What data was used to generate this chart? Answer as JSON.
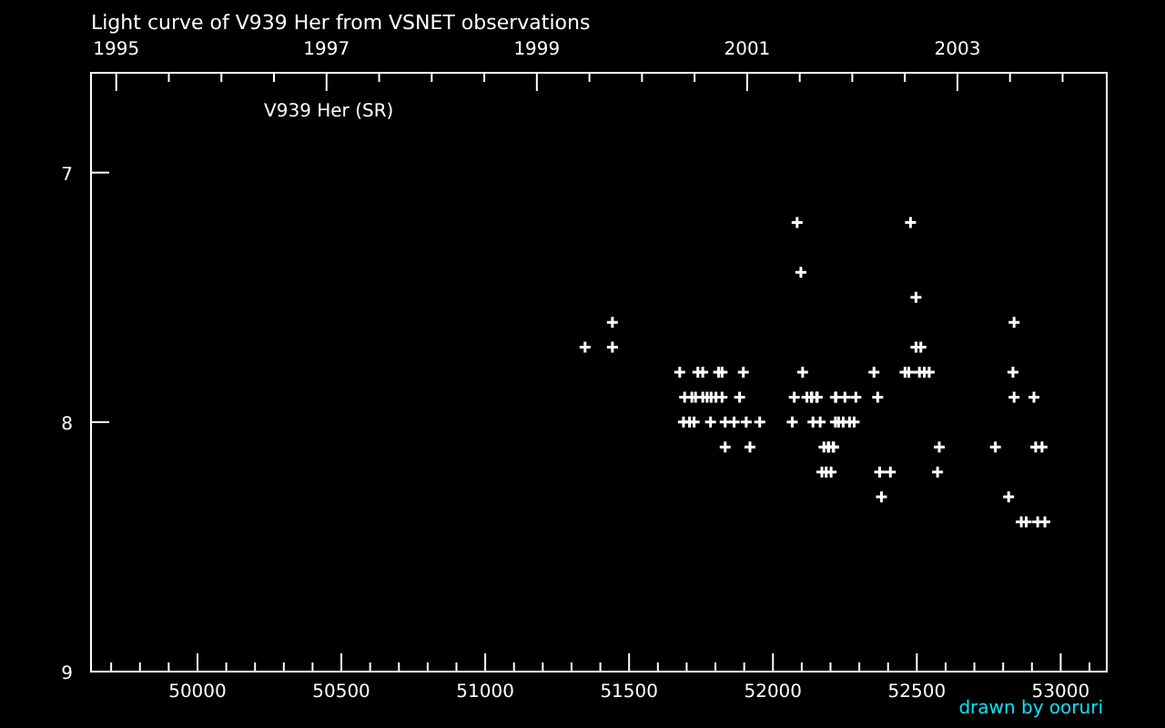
{
  "chart_data": {
    "type": "scatter",
    "title": "Light curve of V939 Her from VSNET observations",
    "annotations": [
      "V939 Her (SR)",
      "drawn by ooruri"
    ],
    "xlim": [
      49630,
      53160
    ],
    "xticks": [
      {
        "value": 49700,
        "label": null
      },
      {
        "value": 49800,
        "label": null
      },
      {
        "value": 49900,
        "label": null
      },
      50000,
      {
        "value": 50100,
        "label": null
      },
      {
        "value": 50200,
        "label": null
      },
      {
        "value": 50300,
        "label": null
      },
      {
        "value": 50400,
        "label": null
      },
      50500,
      {
        "value": 50600,
        "label": null
      },
      {
        "value": 50700,
        "label": null
      },
      {
        "value": 50800,
        "label": null
      },
      {
        "value": 50900,
        "label": null
      },
      51000,
      {
        "value": 51100,
        "label": null
      },
      {
        "value": 51200,
        "label": null
      },
      {
        "value": 51300,
        "label": null
      },
      {
        "value": 51400,
        "label": null
      },
      51500,
      {
        "value": 51600,
        "label": null
      },
      {
        "value": 51700,
        "label": null
      },
      {
        "value": 51800,
        "label": null
      },
      {
        "value": 51900,
        "label": null
      },
      52000,
      {
        "value": 52100,
        "label": null
      },
      {
        "value": 52200,
        "label": null
      },
      {
        "value": 52300,
        "label": null
      },
      {
        "value": 52400,
        "label": null
      },
      52500,
      {
        "value": 52600,
        "label": null
      },
      {
        "value": 52700,
        "label": null
      },
      {
        "value": 52800,
        "label": null
      },
      {
        "value": 52900,
        "label": null
      },
      53000,
      {
        "value": 53100,
        "label": null
      }
    ],
    "x2lim": [
      1994.76,
      2004.42
    ],
    "x2ticks": [
      1995,
      {
        "value": 1995.5,
        "label": null
      },
      {
        "value": 1996,
        "label": null
      },
      {
        "value": 1996.5,
        "label": null
      },
      1997,
      {
        "value": 1997.5,
        "label": null
      },
      {
        "value": 1998,
        "label": null
      },
      {
        "value": 1998.5,
        "label": null
      },
      1999,
      {
        "value": 1999.5,
        "label": null
      },
      {
        "value": 2000,
        "label": null
      },
      {
        "value": 2000.5,
        "label": null
      },
      2001,
      {
        "value": 2001.5,
        "label": null
      },
      {
        "value": 2002,
        "label": null
      },
      {
        "value": 2002.5,
        "label": null
      },
      2003,
      {
        "value": 2003.5,
        "label": null
      },
      {
        "value": 2004,
        "label": null
      }
    ],
    "ylim": [
      9,
      6.6
    ],
    "yticks": [
      7,
      8,
      9
    ],
    "marker": "cross",
    "series": [
      {
        "color": "#ffffff",
        "x": [
          51442,
          51347,
          51442,
          51676,
          51739,
          51756,
          51811,
          51823,
          51897,
          52103,
          51693,
          51718,
          51731,
          51756,
          51771,
          51785,
          51802,
          51823,
          51884,
          52074,
          52118,
          52133,
          52154,
          52217,
          51689,
          51710,
          51726,
          51783,
          51834,
          51865,
          51907,
          51954,
          52067,
          52139,
          52164,
          52217,
          51834,
          51920,
          52177,
          52194,
          52211,
          52170,
          52185,
          52202,
          52478,
          52084,
          52097,
          52497,
          52838,
          52497,
          52514,
          52351,
          52459,
          52472,
          52509,
          52526,
          52543,
          52834,
          52135,
          52152,
          52219,
          52250,
          52288,
          52364,
          52838,
          52907,
          52228,
          52244,
          52266,
          52282,
          52192,
          52209,
          52578,
          52773,
          52913,
          52935,
          52371,
          52408,
          52572,
          52377,
          52819,
          52863,
          52880,
          52920,
          52945
        ],
        "values": [
          7.6,
          7.7,
          7.7,
          7.8,
          7.8,
          7.8,
          7.8,
          7.8,
          7.8,
          7.8,
          7.9,
          7.9,
          7.9,
          7.9,
          7.9,
          7.9,
          7.9,
          7.9,
          7.9,
          7.9,
          7.9,
          7.9,
          7.9,
          7.9,
          8.0,
          8.0,
          8.0,
          8.0,
          8.0,
          8.0,
          8.0,
          8.0,
          8.0,
          8.0,
          8.0,
          8.0,
          8.1,
          8.1,
          8.1,
          8.1,
          8.1,
          8.2,
          8.2,
          8.2,
          7.2,
          7.2,
          7.4,
          7.5,
          7.6,
          7.7,
          7.7,
          7.8,
          7.8,
          7.8,
          7.8,
          7.8,
          7.8,
          7.8,
          7.9,
          7.9,
          7.9,
          7.9,
          7.9,
          7.9,
          7.9,
          7.9,
          8.0,
          8.0,
          8.0,
          8.0,
          8.1,
          8.1,
          8.1,
          8.1,
          8.1,
          8.1,
          8.2,
          8.2,
          8.2,
          8.3,
          8.3,
          8.4,
          8.4,
          8.4,
          8.4
        ]
      }
    ]
  }
}
